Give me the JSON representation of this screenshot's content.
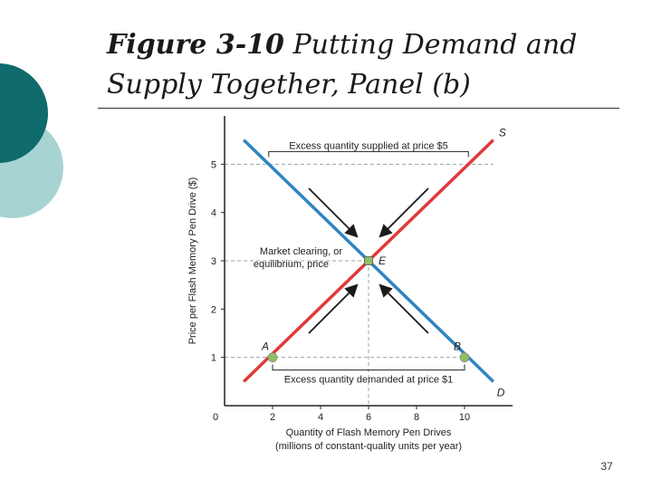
{
  "slide": {
    "title_bold": "Figure 3-10",
    "title_rest": "Putting Demand and Supply Together, Panel (b)",
    "page_number": "37"
  },
  "colors": {
    "teal_dark": "#0f6a6c",
    "teal_light": "#a8d3d3",
    "supply": "#e0393a",
    "demand": "#2f84c1",
    "point_fill": "#8fbf62",
    "arrow": "#1a1a1a",
    "axis": "#222222",
    "grid_dash": "#9aa0a6"
  },
  "chart_data": {
    "type": "line",
    "xlabel": "Quantity of Flash Memory Pen Drives",
    "xlabel_sub": "(millions of constant-quality units per year)",
    "ylabel": "Price per Flash Memory Pen Drive ($)",
    "origin_label": "0",
    "x_ticks": [
      2,
      4,
      6,
      8,
      10
    ],
    "y_ticks": [
      1,
      2,
      3,
      4,
      5
    ],
    "xlim": [
      0,
      12
    ],
    "ylim": [
      0,
      6
    ],
    "series": [
      {
        "name": "S",
        "x": [
          0.8,
          11.2
        ],
        "y": [
          0.5,
          5.5
        ]
      },
      {
        "name": "D",
        "x": [
          0.8,
          11.2
        ],
        "y": [
          5.5,
          0.5
        ]
      }
    ],
    "points": [
      {
        "label": "A",
        "x": 2,
        "y": 1
      },
      {
        "label": "B",
        "x": 10,
        "y": 1
      },
      {
        "label": "E",
        "x": 6,
        "y": 3
      }
    ],
    "annotations": {
      "excess_supply": "Excess quantity supplied at price $5",
      "excess_demand": "Excess quantity demanded at price $1",
      "equilibrium_line1": "Market clearing, or",
      "equilibrium_line2": "equilibrium, price"
    },
    "reference_lines": {
      "price_levels": [
        5,
        3,
        1
      ],
      "quantity_levels": [
        6
      ]
    }
  }
}
